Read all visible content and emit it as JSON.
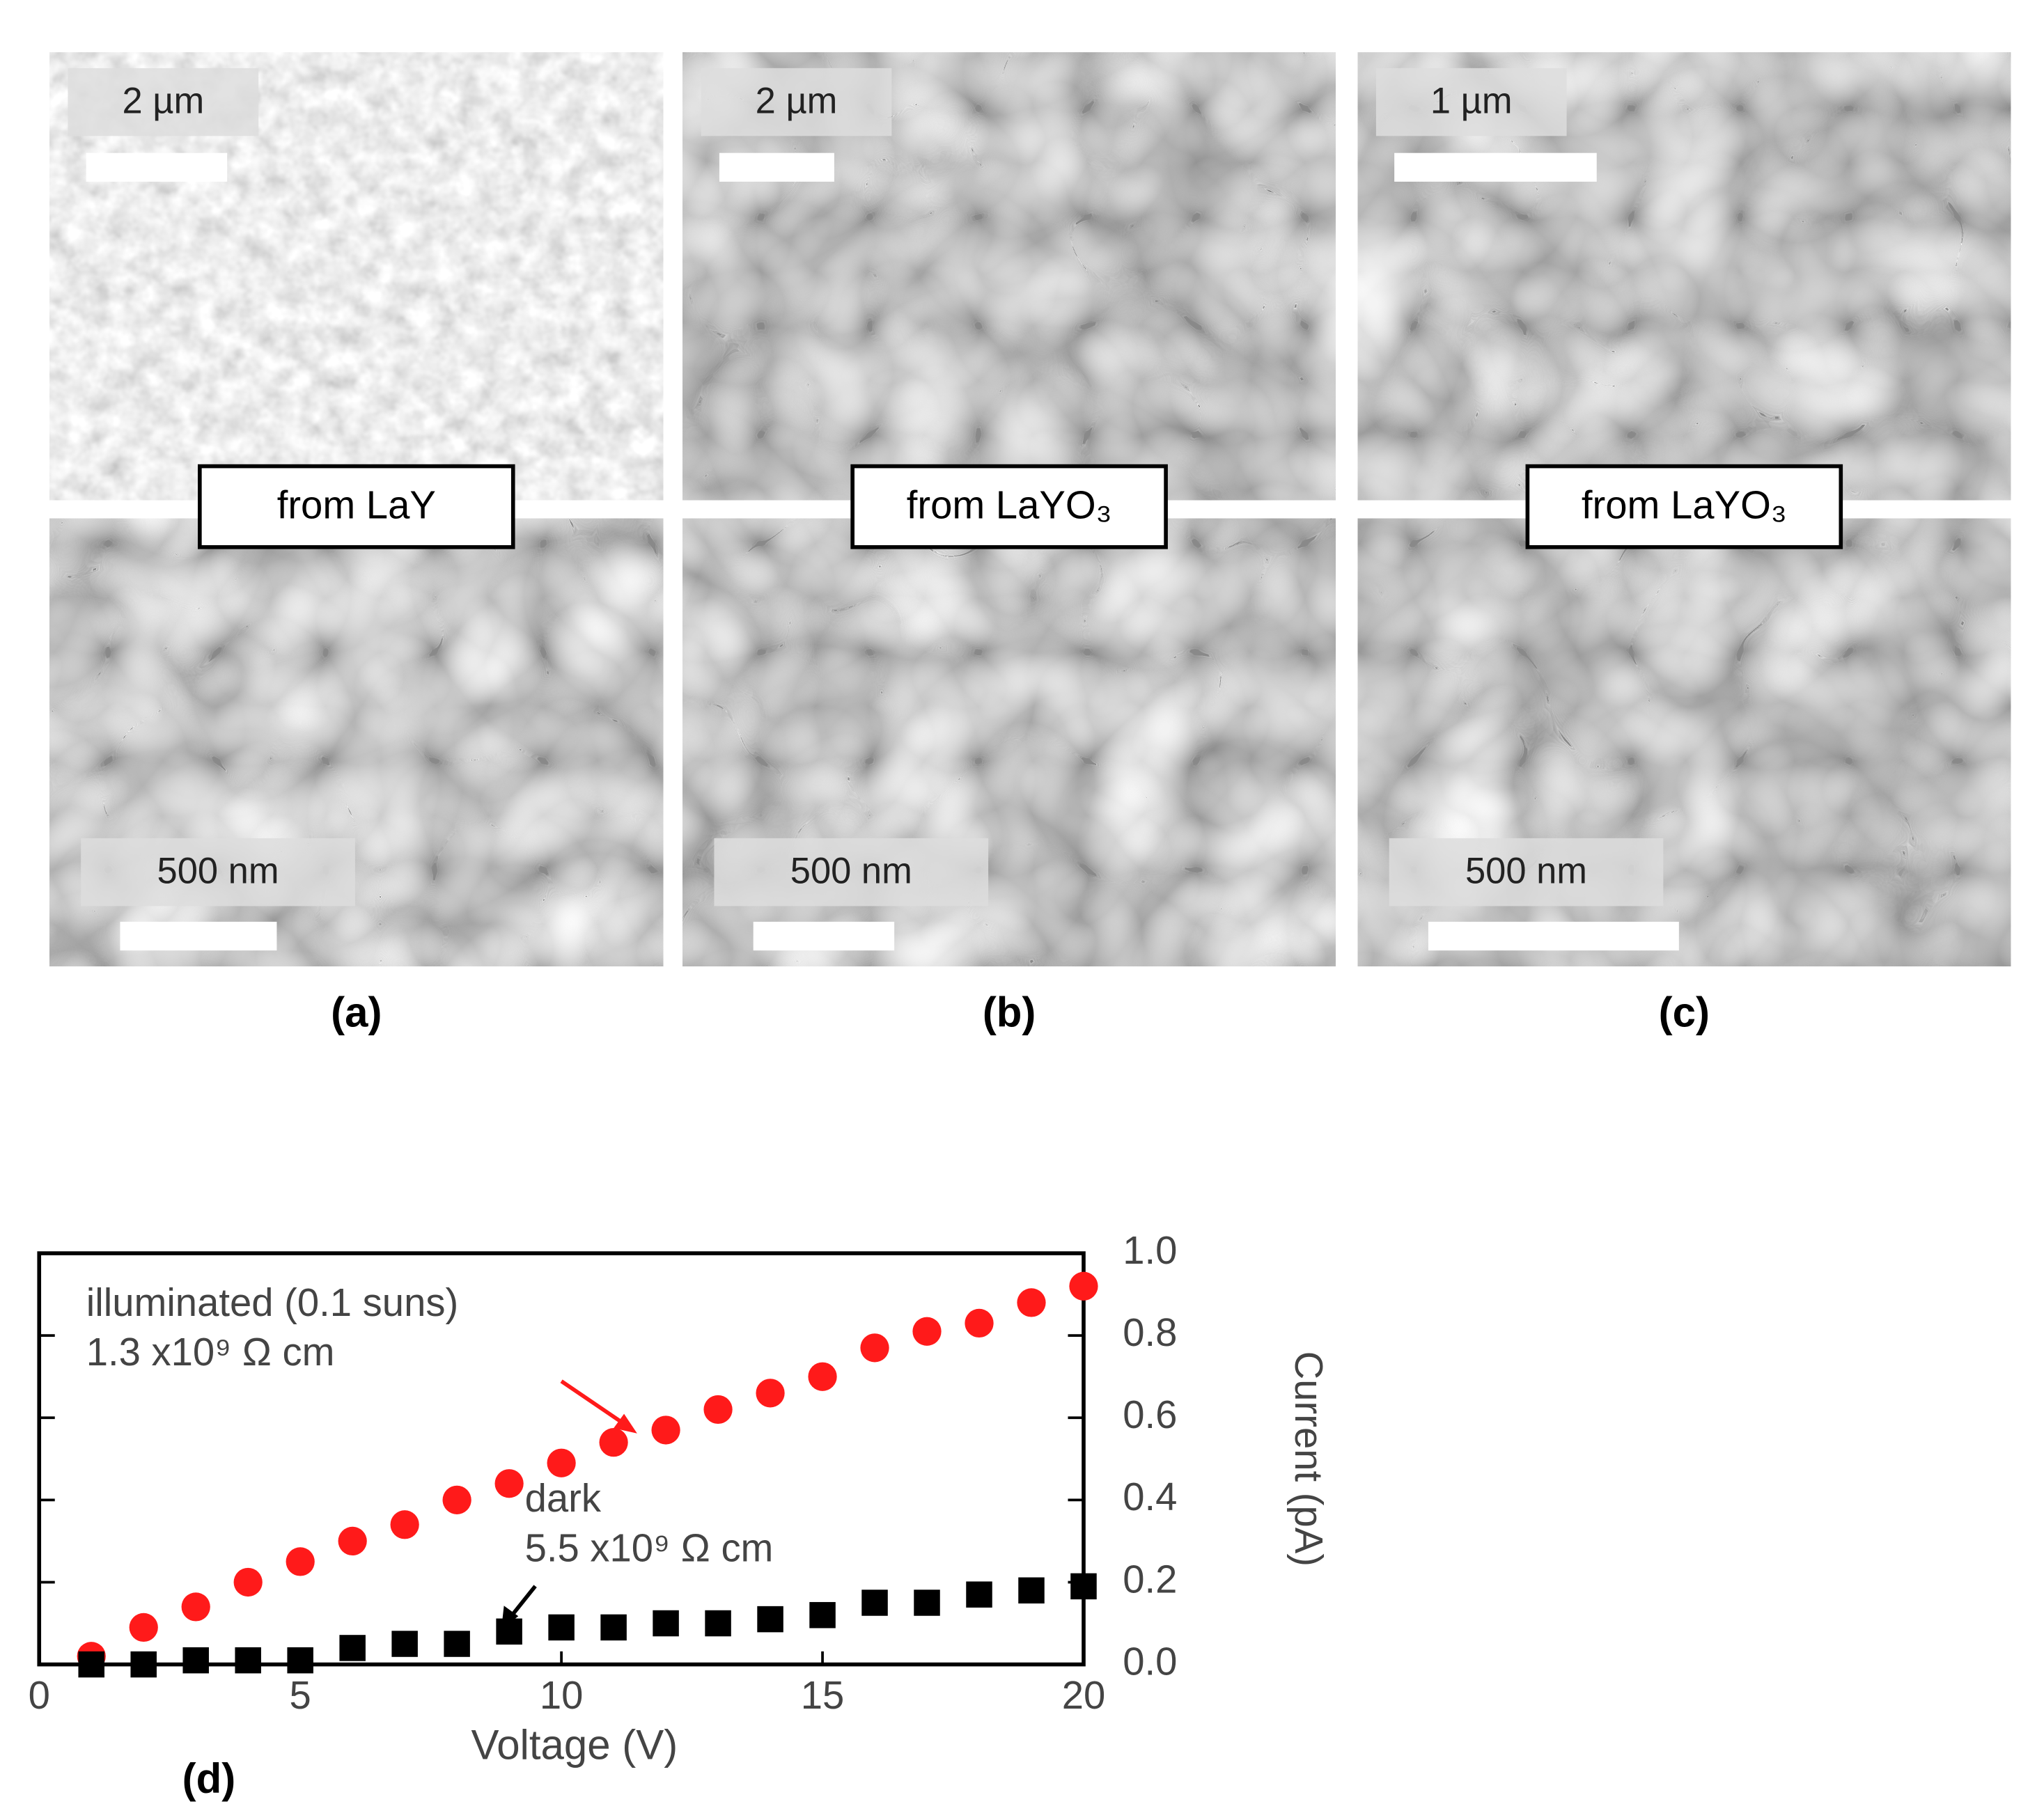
{
  "panels": [
    {
      "top_scale": "2 µm",
      "bottom_scale": "500 nm",
      "caption": "from LaY",
      "label": "(a)"
    },
    {
      "top_scale": "2 µm",
      "bottom_scale": "500 nm",
      "caption": "from LaYO₃",
      "label": "(b)"
    },
    {
      "top_scale": "1 µm",
      "bottom_scale": "500 nm",
      "caption": "from LaYO₃",
      "label": "(c)"
    }
  ],
  "chart_data": {
    "type": "scatter",
    "panel_label": "(d)",
    "xlabel": "Voltage (V)",
    "ylabel": "Current (pA)",
    "x": [
      1,
      2,
      3,
      4,
      5,
      6,
      7,
      8,
      9,
      10,
      11,
      12,
      13,
      14,
      15,
      16,
      17,
      18,
      19,
      20
    ],
    "series": [
      {
        "color": "#ff1a1a",
        "marker": "circle",
        "values": [
          0.02,
          0.09,
          0.14,
          0.2,
          0.25,
          0.3,
          0.34,
          0.4,
          0.44,
          0.49,
          0.54,
          0.57,
          0.62,
          0.66,
          0.7,
          0.77,
          0.81,
          0.83,
          0.88,
          0.92
        ]
      },
      {
        "color": "#000000",
        "marker": "square",
        "values": [
          0.0,
          0.0,
          0.01,
          0.01,
          0.01,
          0.04,
          0.05,
          0.05,
          0.08,
          0.09,
          0.09,
          0.1,
          0.1,
          0.11,
          0.12,
          0.15,
          0.15,
          0.17,
          0.18,
          0.19
        ]
      }
    ],
    "annotations": [
      "illuminated (0.1 suns)",
      "1.3 x10⁹ Ω cm",
      "dark",
      "5.5 x10⁹ Ω cm"
    ],
    "xlim": [
      0,
      20
    ],
    "xticks": [
      0,
      5,
      10,
      15,
      20
    ],
    "ylim": [
      0,
      1
    ],
    "yticks": [
      {
        "value": 0,
        "label": "0.0"
      },
      0.2,
      0.4,
      0.6,
      0.8,
      {
        "value": 1,
        "label": "1.0"
      }
    ],
    "grid": false,
    "yaxis_side": "right"
  }
}
